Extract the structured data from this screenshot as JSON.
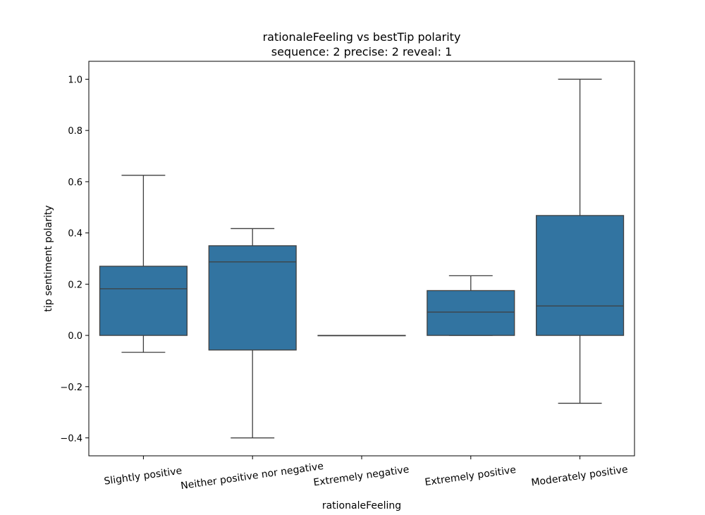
{
  "chart_data": {
    "type": "box",
    "title": "rationaleFeeling vs bestTip polarity",
    "subtitle": "sequence: 2  precise: 2  reveal: 1",
    "xlabel": "rationaleFeeling",
    "ylabel": "tip sentiment polarity",
    "ylim": [
      -0.47,
      1.07
    ],
    "yticks": [
      -0.4,
      -0.2,
      0.0,
      0.2,
      0.4,
      0.6,
      0.8,
      1.0
    ],
    "ytick_labels": [
      "−0.4",
      "−0.2",
      "0.0",
      "0.2",
      "0.4",
      "0.6",
      "0.8",
      "1.0"
    ],
    "grid": false,
    "box_color": "#3274a1",
    "line_color": "#3f3f3f",
    "categories": [
      "Slightly positive",
      "Neither positive nor negative",
      "Extremely negative",
      "Extremely positive",
      "Moderately positive"
    ],
    "boxes": [
      {
        "category": "Slightly positive",
        "whisker_low": -0.066,
        "q1": 0.0,
        "median": 0.182,
        "q3": 0.27,
        "whisker_high": 0.625
      },
      {
        "category": "Neither positive nor negative",
        "whisker_low": -0.4,
        "q1": -0.057,
        "median": 0.287,
        "q3": 0.35,
        "whisker_high": 0.417
      },
      {
        "category": "Extremely negative",
        "whisker_low": 0.0,
        "q1": 0.0,
        "median": 0.0,
        "q3": 0.0,
        "whisker_high": 0.0
      },
      {
        "category": "Extremely positive",
        "whisker_low": 0.0,
        "q1": 0.0,
        "median": 0.091,
        "q3": 0.175,
        "whisker_high": 0.233
      },
      {
        "category": "Moderately positive",
        "whisker_low": -0.265,
        "q1": 0.0,
        "median": 0.115,
        "q3": 0.468,
        "whisker_high": 1.0
      }
    ]
  }
}
